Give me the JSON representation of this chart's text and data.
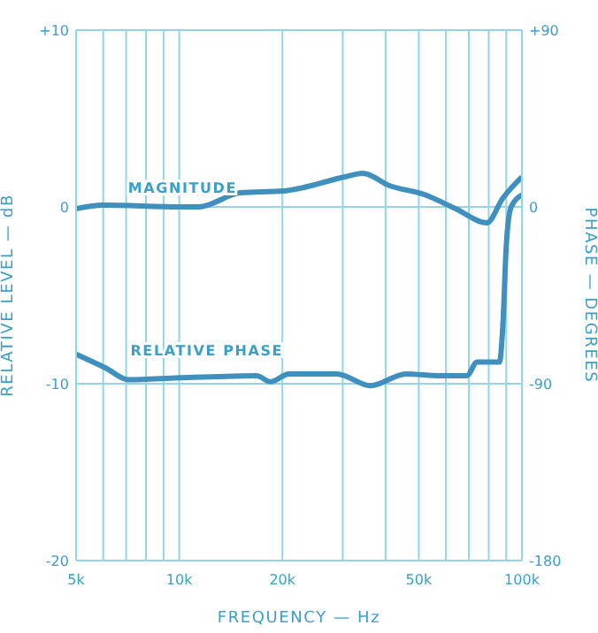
{
  "chart_data": {
    "type": "line",
    "xlabel": "FREQUENCY — Hz",
    "ylabel": "RELATIVE LEVEL — dB",
    "y2label": "PHASE — DEGREES",
    "log": "x",
    "xlim": [
      5000,
      100000
    ],
    "xticks": [
      {
        "value": 5000,
        "label": "5k"
      },
      {
        "value": 6000,
        "label": null
      },
      {
        "value": 7000,
        "label": null
      },
      {
        "value": 8000,
        "label": null
      },
      {
        "value": 9000,
        "label": null
      },
      {
        "value": 10000,
        "label": "10k"
      },
      {
        "value": 20000,
        "label": "20k"
      },
      {
        "value": 30000,
        "label": null
      },
      {
        "value": 40000,
        "label": null
      },
      {
        "value": 50000,
        "label": "50k"
      },
      {
        "value": 60000,
        "label": null
      },
      {
        "value": 70000,
        "label": null
      },
      {
        "value": 80000,
        "label": null
      },
      {
        "value": 90000,
        "label": null
      },
      {
        "value": 100000,
        "label": "100k"
      }
    ],
    "ylim": [
      -20,
      10
    ],
    "yticks": [
      -20,
      -10,
      0,
      {
        "value": 10,
        "label": "+10"
      }
    ],
    "y2lim": [
      -180,
      90
    ],
    "y2ticks": [
      -180,
      -90,
      0,
      {
        "value": 90,
        "label": "+90"
      }
    ],
    "grid": true,
    "legend": false,
    "marker": "none",
    "line_style": "solid",
    "series": [
      {
        "name": "MAGNITUDE",
        "color": "#3f8fbf",
        "x": [
          5000,
          6000,
          10000,
          11400,
          15100,
          20200,
          30500,
          34300,
          41100,
          51900,
          64000,
          79000,
          88000,
          100000
        ],
        "values": [
          -0.1,
          0.1,
          0,
          0,
          0.8,
          0.9,
          1.7,
          1.9,
          1.2,
          0.7,
          -0.1,
          -0.9,
          0.5,
          1.7
        ]
      },
      {
        "name": "RELATIVE PHASE",
        "color": "#3f8fbf",
        "axis": "y2",
        "x": [
          5000,
          6100,
          7100,
          10000,
          16800,
          18500,
          20900,
          28800,
          36200,
          45900,
          58000,
          69000,
          74000,
          86000,
          88000,
          90000,
          93000,
          100000
        ],
        "values": [
          -75,
          -82,
          -88,
          -87,
          -86,
          -89,
          -85,
          -85,
          -91,
          -85,
          -86,
          -86,
          -79,
          -79,
          -60,
          -20,
          0,
          6
        ]
      }
    ]
  }
}
